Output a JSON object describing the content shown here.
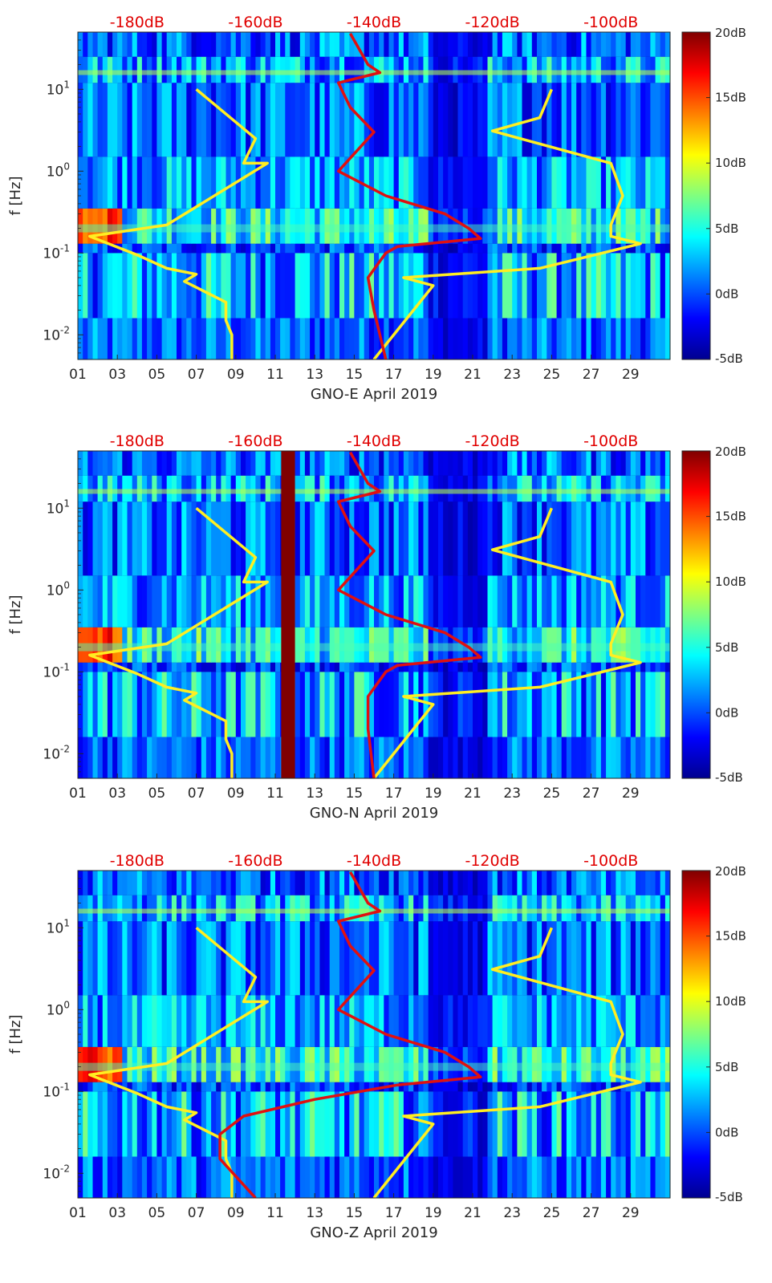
{
  "figure": {
    "colorbar_ticks": [
      "20dB",
      "15dB",
      "10dB",
      "5dB",
      "0dB",
      "-5dB"
    ],
    "top_axis_ticks": [
      "-180dB",
      "-160dB",
      "-140dB",
      "-120dB",
      "-100dB"
    ],
    "x_ticks": [
      "01",
      "03",
      "05",
      "07",
      "09",
      "11",
      "13",
      "15",
      "17",
      "19",
      "21",
      "23",
      "25",
      "27",
      "29"
    ],
    "y_ticks": [
      "10",
      "10",
      "10",
      "10"
    ],
    "y_tick_exponents": [
      "1",
      "0",
      "-1",
      "-2"
    ],
    "ylabel": "f [Hz]",
    "colors": {
      "model_low_high": "#ffee22",
      "station_median": "#e01010",
      "top_labels": "#e00000",
      "background": "#0a0a99"
    }
  },
  "chart_data": [
    {
      "type": "heatmap",
      "title": "",
      "xlabel": "GNO-E April 2019",
      "ylabel": "f [Hz]",
      "xlim": [
        1,
        31
      ],
      "ylim_hz": [
        0.005,
        50
      ],
      "y_scale": "log",
      "color_range_db": [
        -5,
        20
      ],
      "top_axis_db": [
        -190,
        -90
      ],
      "series": [
        {
          "color": "yellow",
          "db": [
            -170,
            -160,
            -162,
            -158,
            -175,
            -188,
            -180,
            -175,
            -170,
            -172,
            -165,
            -165,
            -164,
            -164
          ],
          "freq_hz": [
            10,
            2.5,
            1.25,
            1.25,
            0.22,
            0.16,
            0.095,
            0.065,
            0.055,
            0.045,
            0.025,
            0.015,
            0.01,
            0.005
          ]
        },
        {
          "color": "yellow",
          "db": [
            -110,
            -112,
            -120,
            -100,
            -98,
            -100,
            -100,
            -95,
            -112,
            -135,
            -130,
            -140
          ],
          "freq_hz": [
            10,
            4.5,
            3.1,
            1.25,
            0.5,
            0.22,
            0.16,
            0.13,
            0.065,
            0.05,
            0.04,
            0.005
          ]
        },
        {
          "color": "red",
          "db": [
            -144,
            -141,
            -139,
            -146,
            -144,
            -140,
            -146,
            -138,
            -128,
            -124,
            -122,
            -136,
            -138,
            -141,
            -140,
            -138
          ],
          "freq_hz": [
            48,
            20,
            16,
            12,
            6,
            3,
            1,
            0.5,
            0.3,
            0.2,
            0.15,
            0.12,
            0.1,
            0.05,
            0.02,
            0.005
          ]
        }
      ]
    },
    {
      "type": "heatmap",
      "title": "",
      "xlabel": "GNO-N April 2019",
      "ylabel": "f [Hz]",
      "xlim": [
        1,
        31
      ],
      "ylim_hz": [
        0.005,
        50
      ],
      "y_scale": "log",
      "color_range_db": [
        -5,
        20
      ],
      "top_axis_db": [
        -190,
        -90
      ],
      "series": [
        {
          "color": "yellow",
          "db": [
            -170,
            -160,
            -162,
            -158,
            -175,
            -188,
            -180,
            -175,
            -170,
            -172,
            -165,
            -165,
            -164,
            -164
          ],
          "freq_hz": [
            10,
            2.5,
            1.25,
            1.25,
            0.22,
            0.16,
            0.095,
            0.065,
            0.055,
            0.045,
            0.025,
            0.015,
            0.01,
            0.005
          ]
        },
        {
          "color": "yellow",
          "db": [
            -110,
            -112,
            -120,
            -100,
            -98,
            -100,
            -100,
            -95,
            -112,
            -135,
            -130,
            -140
          ],
          "freq_hz": [
            10,
            4.5,
            3.1,
            1.25,
            0.5,
            0.22,
            0.16,
            0.13,
            0.065,
            0.05,
            0.04,
            0.005
          ]
        },
        {
          "color": "red",
          "db": [
            -144,
            -141,
            -139,
            -146,
            -144,
            -140,
            -146,
            -138,
            -128,
            -124,
            -122,
            -136,
            -138,
            -141,
            -141,
            -140
          ],
          "freq_hz": [
            48,
            20,
            16,
            12,
            6,
            3,
            1,
            0.5,
            0.3,
            0.2,
            0.15,
            0.12,
            0.1,
            0.05,
            0.02,
            0.005
          ]
        }
      ]
    },
    {
      "type": "heatmap",
      "title": "",
      "xlabel": "GNO-Z April 2019",
      "ylabel": "f [Hz]",
      "xlim": [
        1,
        31
      ],
      "ylim_hz": [
        0.005,
        50
      ],
      "y_scale": "log",
      "color_range_db": [
        -5,
        20
      ],
      "top_axis_db": [
        -190,
        -90
      ],
      "series": [
        {
          "color": "yellow",
          "db": [
            -170,
            -160,
            -162,
            -158,
            -175,
            -188,
            -180,
            -175,
            -170,
            -172,
            -165,
            -165,
            -164,
            -164
          ],
          "freq_hz": [
            10,
            2.5,
            1.25,
            1.25,
            0.22,
            0.16,
            0.095,
            0.065,
            0.055,
            0.045,
            0.025,
            0.015,
            0.01,
            0.005
          ]
        },
        {
          "color": "yellow",
          "db": [
            -110,
            -112,
            -120,
            -100,
            -98,
            -100,
            -100,
            -95,
            -112,
            -135,
            -130,
            -140
          ],
          "freq_hz": [
            10,
            4.5,
            3.1,
            1.25,
            0.5,
            0.22,
            0.16,
            0.13,
            0.065,
            0.05,
            0.04,
            0.005
          ]
        },
        {
          "color": "red",
          "db": [
            -144,
            -141,
            -139,
            -146,
            -144,
            -140,
            -146,
            -138,
            -128,
            -124,
            -122,
            -136,
            -150,
            -162,
            -166,
            -166,
            -160
          ],
          "freq_hz": [
            48,
            20,
            16,
            12,
            6,
            3,
            1,
            0.5,
            0.3,
            0.2,
            0.15,
            0.12,
            0.08,
            0.05,
            0.03,
            0.015,
            0.005
          ]
        }
      ]
    }
  ]
}
